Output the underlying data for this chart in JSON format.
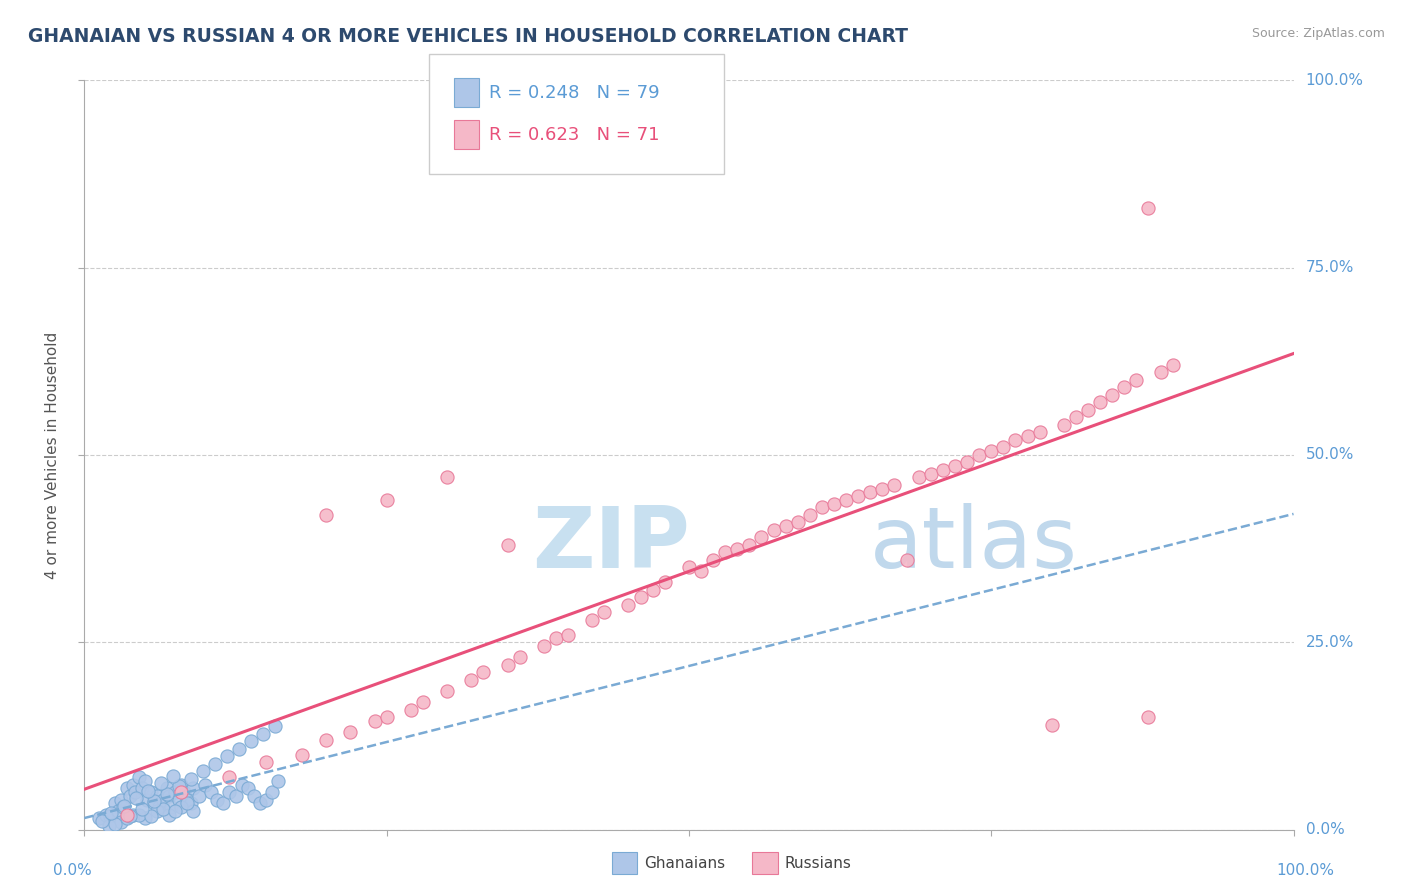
{
  "title": "GHANAIAN VS RUSSIAN 4 OR MORE VEHICLES IN HOUSEHOLD CORRELATION CHART",
  "source": "Source: ZipAtlas.com",
  "ylabel": "4 or more Vehicles in Household",
  "xlim": [
    0,
    100
  ],
  "ylim": [
    0,
    100
  ],
  "ytick_values": [
    0,
    25,
    50,
    75,
    100
  ],
  "xtick_values": [
    0,
    25,
    50,
    75,
    100
  ],
  "ghanaian_R": 0.248,
  "ghanaian_N": 79,
  "russian_R": 0.623,
  "russian_N": 71,
  "ghanaian_color": "#aec6e8",
  "ghanaian_edge": "#7aaad4",
  "russian_color": "#f5b8c8",
  "russian_edge": "#e87898",
  "trend_ghanaian_color": "#7aaad4",
  "trend_russian_color": "#e8507a",
  "watermark_zip_color": "#c8e0f0",
  "watermark_atlas_color": "#c0d8ec",
  "background_color": "#ffffff",
  "title_color": "#2d4a6e",
  "source_color": "#999999",
  "axis_label_color": "#555555",
  "tick_label_color": "#5b9bd5",
  "legend_text_color_gh": "#5b9bd5",
  "legend_text_color_ru": "#e8507a",
  "gh_x": [
    1.2,
    1.8,
    2.1,
    2.5,
    2.8,
    3.0,
    3.2,
    3.5,
    3.8,
    4.0,
    4.2,
    4.5,
    4.8,
    5.0,
    5.2,
    5.5,
    5.8,
    6.0,
    6.2,
    6.5,
    6.8,
    7.0,
    7.2,
    7.5,
    7.8,
    8.0,
    8.2,
    8.5,
    8.8,
    9.0,
    9.5,
    10.0,
    10.5,
    11.0,
    11.5,
    12.0,
    12.5,
    13.0,
    13.5,
    14.0,
    14.5,
    15.0,
    15.5,
    16.0,
    3.0,
    4.0,
    5.0,
    6.0,
    7.0,
    8.0,
    9.0,
    2.0,
    3.5,
    4.5,
    5.5,
    6.5,
    7.5,
    8.5,
    2.5,
    3.8,
    4.8,
    5.8,
    6.8,
    7.8,
    8.8,
    9.8,
    10.8,
    11.8,
    12.8,
    13.8,
    14.8,
    15.8,
    1.5,
    2.2,
    3.3,
    4.3,
    5.3,
    6.3,
    7.3
  ],
  "gh_y": [
    1.5,
    2.0,
    1.8,
    3.5,
    2.5,
    4.0,
    3.0,
    5.5,
    4.5,
    6.0,
    5.0,
    7.0,
    5.5,
    6.5,
    4.0,
    5.0,
    3.5,
    4.5,
    3.0,
    4.0,
    5.5,
    4.5,
    3.0,
    5.0,
    4.0,
    6.0,
    5.0,
    4.0,
    3.5,
    5.5,
    4.5,
    6.0,
    5.0,
    4.0,
    3.5,
    5.0,
    4.5,
    6.0,
    5.5,
    4.5,
    3.5,
    4.0,
    5.0,
    6.5,
    1.0,
    2.0,
    1.5,
    2.5,
    2.0,
    3.0,
    2.5,
    0.5,
    1.5,
    2.0,
    1.8,
    2.8,
    2.5,
    3.5,
    0.8,
    1.8,
    2.8,
    3.8,
    4.8,
    5.8,
    6.8,
    7.8,
    8.8,
    9.8,
    10.8,
    11.8,
    12.8,
    13.8,
    1.2,
    2.2,
    3.2,
    4.2,
    5.2,
    6.2,
    7.2
  ],
  "ru_x": [
    3.5,
    8.0,
    12.0,
    15.0,
    18.0,
    20.0,
    22.0,
    24.0,
    25.0,
    27.0,
    28.0,
    30.0,
    32.0,
    33.0,
    35.0,
    36.0,
    38.0,
    39.0,
    40.0,
    42.0,
    43.0,
    45.0,
    46.0,
    47.0,
    48.0,
    50.0,
    51.0,
    52.0,
    53.0,
    54.0,
    55.0,
    56.0,
    57.0,
    58.0,
    59.0,
    60.0,
    61.0,
    62.0,
    63.0,
    64.0,
    65.0,
    66.0,
    67.0,
    68.0,
    69.0,
    70.0,
    71.0,
    72.0,
    73.0,
    74.0,
    75.0,
    76.0,
    77.0,
    78.0,
    79.0,
    80.0,
    81.0,
    82.0,
    83.0,
    84.0,
    85.0,
    86.0,
    87.0,
    88.0,
    89.0,
    90.0,
    20.0,
    25.0,
    30.0,
    35.0,
    88.0
  ],
  "ru_y": [
    2.0,
    5.0,
    7.0,
    9.0,
    10.0,
    12.0,
    13.0,
    14.5,
    15.0,
    16.0,
    17.0,
    18.5,
    20.0,
    21.0,
    22.0,
    23.0,
    24.5,
    25.5,
    26.0,
    28.0,
    29.0,
    30.0,
    31.0,
    32.0,
    33.0,
    35.0,
    34.5,
    36.0,
    37.0,
    37.5,
    38.0,
    39.0,
    40.0,
    40.5,
    41.0,
    42.0,
    43.0,
    43.5,
    44.0,
    44.5,
    45.0,
    45.5,
    46.0,
    36.0,
    47.0,
    47.5,
    48.0,
    48.5,
    49.0,
    50.0,
    50.5,
    51.0,
    52.0,
    52.5,
    53.0,
    14.0,
    54.0,
    55.0,
    56.0,
    57.0,
    58.0,
    59.0,
    60.0,
    83.0,
    61.0,
    62.0,
    42.0,
    44.0,
    47.0,
    38.0,
    15.0
  ]
}
